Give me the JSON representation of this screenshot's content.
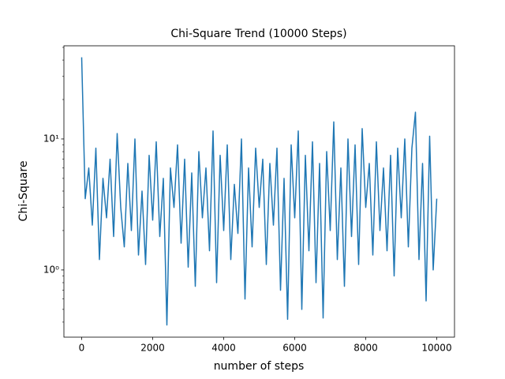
{
  "chart_data": {
    "type": "line",
    "title": "Chi-Square Trend (10000 Steps)",
    "x_label": "number of steps",
    "y_label": "Chi-Square",
    "x": [
      0,
      100,
      200,
      300,
      400,
      500,
      600,
      700,
      800,
      900,
      1000,
      1100,
      1200,
      1300,
      1400,
      1500,
      1600,
      1700,
      1800,
      1900,
      2000,
      2100,
      2200,
      2300,
      2400,
      2500,
      2600,
      2700,
      2800,
      2900,
      3000,
      3100,
      3200,
      3300,
      3400,
      3500,
      3600,
      3700,
      3800,
      3900,
      4000,
      4100,
      4200,
      4300,
      4400,
      4500,
      4600,
      4700,
      4800,
      4900,
      5000,
      5100,
      5200,
      5300,
      5400,
      5500,
      5600,
      5700,
      5800,
      5900,
      6000,
      6100,
      6200,
      6300,
      6400,
      6500,
      6600,
      6700,
      6800,
      6900,
      7000,
      7100,
      7200,
      7300,
      7400,
      7500,
      7600,
      7700,
      7800,
      7900,
      8000,
      8100,
      8200,
      8300,
      8400,
      8500,
      8600,
      8700,
      8800,
      8900,
      9000,
      9100,
      9200,
      9300,
      9400,
      9500,
      9600,
      9700,
      9800,
      9900,
      10000
    ],
    "series": [
      {
        "name": "Chi-Square",
        "color": "#1f77b4",
        "values": [
          42,
          3.5,
          6,
          2.2,
          8.5,
          1.2,
          5,
          2.5,
          7,
          1.8,
          11,
          3,
          1.5,
          6.5,
          2,
          10,
          1.3,
          4,
          1.1,
          7.5,
          2.4,
          9.5,
          1.8,
          5,
          0.38,
          6,
          3,
          9,
          1.6,
          7,
          1.05,
          5.5,
          0.75,
          8,
          2.5,
          6,
          1.4,
          11.5,
          0.8,
          7.5,
          2,
          9,
          1.2,
          4.5,
          1.9,
          10,
          0.6,
          6,
          1.5,
          8.5,
          3,
          7,
          1.1,
          6.5,
          2.2,
          8.5,
          0.7,
          5,
          0.42,
          9,
          2.5,
          11.5,
          0.5,
          7.5,
          1.4,
          9.5,
          0.8,
          6.5,
          0.43,
          8,
          2,
          13.5,
          1.2,
          6,
          0.75,
          10,
          1.8,
          9,
          1.1,
          12,
          3,
          6.5,
          1.3,
          9.5,
          2,
          6,
          1.4,
          7.5,
          0.9,
          8.5,
          2.5,
          10,
          1.5,
          8.5,
          16,
          1.2,
          6.5,
          0.58,
          10.5,
          1.0,
          3.5
        ]
      }
    ],
    "xlim": [
      -500,
      10500
    ],
    "xticks": [
      0,
      2000,
      4000,
      6000,
      8000,
      10000
    ],
    "ylim": [
      0.307,
      51.4
    ],
    "yscale": "log",
    "yticks": [
      {
        "value": 1,
        "label": "10⁰"
      },
      {
        "value": 10,
        "label": "10¹"
      }
    ],
    "yminorticks": [
      0.4,
      0.5,
      0.6,
      0.7,
      0.8,
      0.9,
      2,
      3,
      4,
      5,
      6,
      7,
      8,
      9,
      20,
      30,
      40,
      50
    ]
  }
}
